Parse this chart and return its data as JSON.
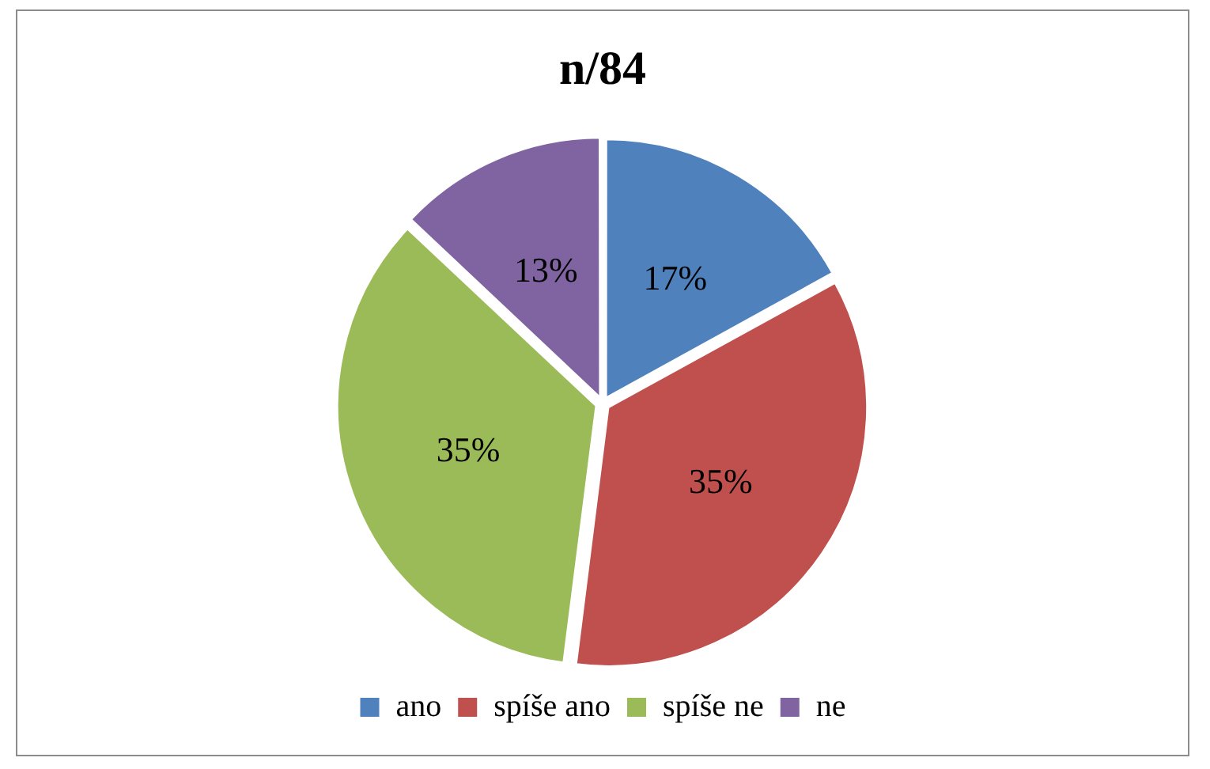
{
  "chart_data": {
    "type": "pie",
    "title": "n/84",
    "categories": [
      "ano",
      "spíše ano",
      "spíše ne",
      "ne"
    ],
    "values": [
      17,
      35,
      35,
      13
    ],
    "colors": [
      "#4f81bd",
      "#c0504d",
      "#9bbb59",
      "#8064a2"
    ],
    "value_labels": [
      "17%",
      "35%",
      "35%",
      "13%"
    ],
    "legend": "bottom"
  }
}
